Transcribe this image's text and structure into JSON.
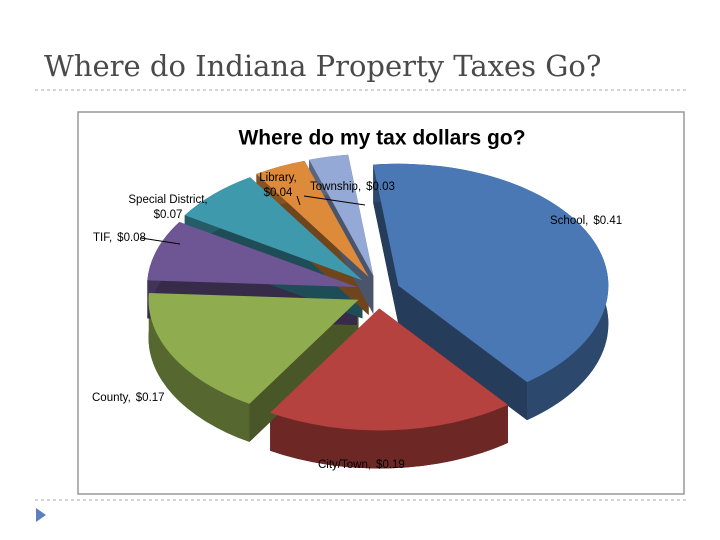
{
  "slide": {
    "title": "Where do Indiana Property Taxes Go?"
  },
  "chart_data": {
    "type": "pie",
    "title": "Where do my tax dollars go?",
    "categories": [
      "School,",
      "City/Town,",
      "County,",
      "TIF,",
      "Special District,",
      "Library,",
      "Township,"
    ],
    "values": [
      0.41,
      0.19,
      0.17,
      0.08,
      0.07,
      0.04,
      0.03
    ],
    "value_labels": [
      "$0.41",
      "$0.19",
      "$0.17",
      "$0.08",
      "$0.07",
      "$0.04",
      "$0.03"
    ],
    "colors": [
      "#4a78b4",
      "#b5423f",
      "#8fac4f",
      "#6e5593",
      "#3e99ad",
      "#dd8a3a",
      "#94a9d6"
    ]
  }
}
